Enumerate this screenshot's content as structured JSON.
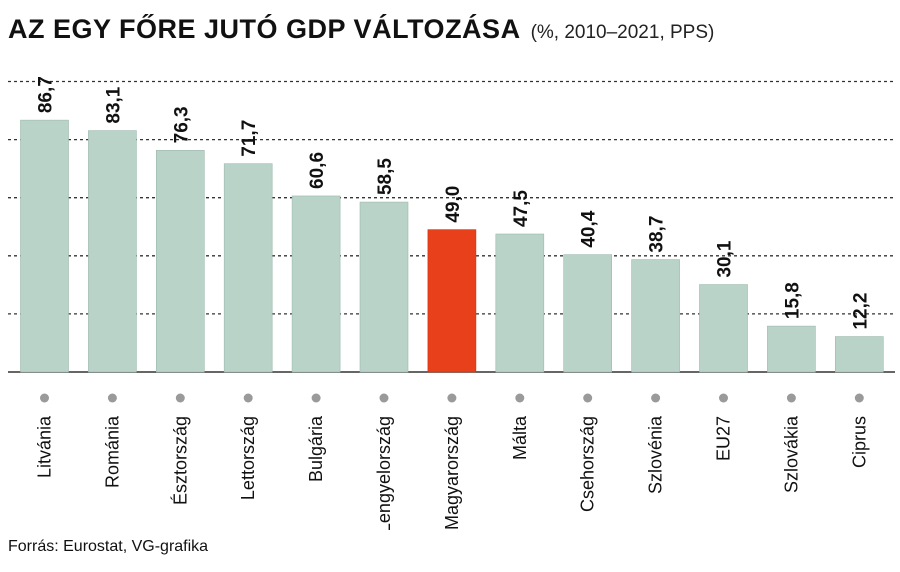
{
  "title": "AZ EGY FŐRE JUTÓ GDP VÁLTOZÁSA",
  "subtitle": "(%, 2010–2021, PPS)",
  "source": "Forrás: Eurostat, VG-grafika",
  "colors": {
    "bar": "#b9d3c9",
    "highlight": "#e8401a",
    "grid": "#333333",
    "dot": "#9a9a9a"
  },
  "chart_data": {
    "type": "bar",
    "categories": [
      "Litvánia",
      "Románia",
      "Észtország",
      "Lettország",
      "Bulgária",
      "Lengyelország",
      "Magyarország",
      "Málta",
      "Csehország",
      "Szlovénia",
      "EU27",
      "Szlovákia",
      "Ciprus"
    ],
    "values": [
      86.7,
      83.1,
      76.3,
      71.7,
      60.6,
      58.5,
      49.0,
      47.5,
      40.4,
      38.7,
      30.1,
      15.8,
      12.2
    ],
    "value_labels": [
      "86,7",
      "83,1",
      "76,3",
      "71,7",
      "60,6",
      "58,5",
      "49,0",
      "47,5",
      "40,4",
      "38,7",
      "30,1",
      "15,8",
      "12,2"
    ],
    "highlight": "Magyarország",
    "ylim": [
      0,
      100
    ],
    "grid": true,
    "xlabel": "",
    "ylabel": ""
  }
}
